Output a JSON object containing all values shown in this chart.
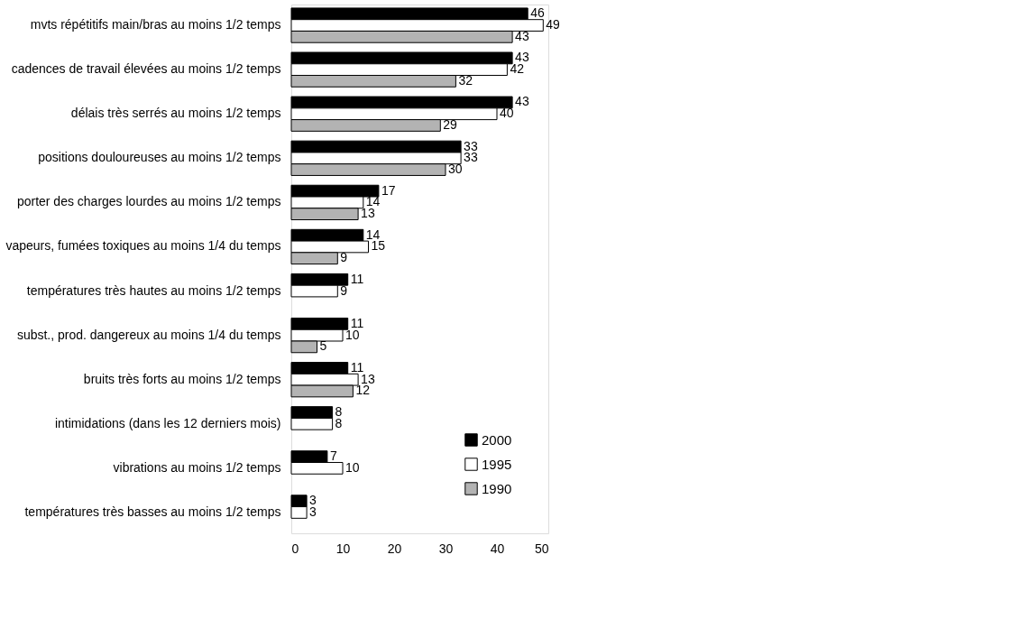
{
  "chart_data": {
    "type": "bar",
    "orientation": "horizontal",
    "categories": [
      "mvts répétitifs main/bras au moins 1/2 temps",
      "cadences de travail élevées au moins 1/2 temps",
      "délais très serrés au moins 1/2 temps",
      "positions douloureuses au moins 1/2 temps",
      "porter des charges lourdes au moins 1/2 temps",
      "vapeurs, fumées toxiques au moins 1/4 du temps",
      "températures très hautes au moins 1/2 temps",
      "subst., prod. dangereux au moins 1/4 du temps",
      "bruits très forts au moins 1/2 temps",
      "intimidations (dans les 12 derniers mois)",
      "vibrations au moins 1/2 temps",
      "températures très basses au moins 1/2 temps"
    ],
    "series": [
      {
        "name": "2000",
        "color": "#000000",
        "values": [
          46,
          43,
          43,
          33,
          17,
          14,
          11,
          11,
          11,
          8,
          7,
          3
        ]
      },
      {
        "name": "1995",
        "color": "#ffffff",
        "values": [
          49,
          42,
          40,
          33,
          14,
          15,
          9,
          10,
          13,
          8,
          10,
          3
        ]
      },
      {
        "name": "1990",
        "color": "#b3b3b3",
        "values": [
          43,
          32,
          29,
          30,
          13,
          9,
          null,
          5,
          12,
          null,
          null,
          null
        ]
      }
    ],
    "xlim": [
      0,
      50
    ],
    "xticks": [
      0,
      10,
      20,
      30,
      40,
      50
    ],
    "data_labels": true,
    "legend": "bottom right",
    "grid": false
  }
}
